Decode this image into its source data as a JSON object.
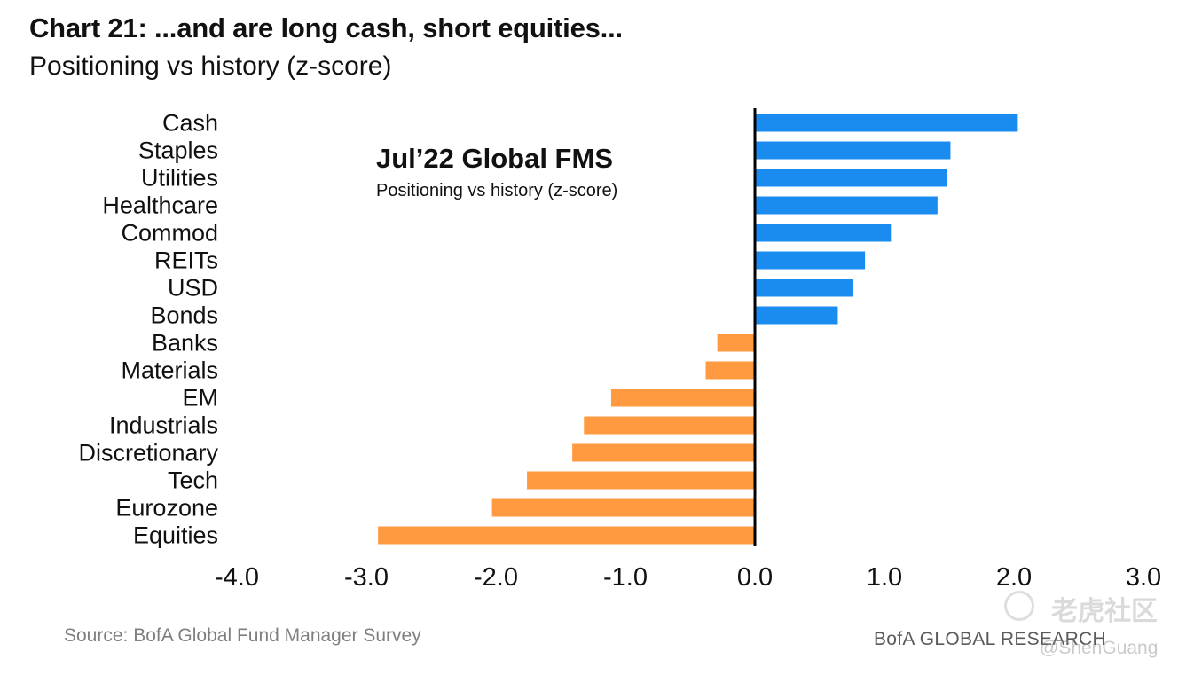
{
  "header": {
    "title": "Chart 21: ...and are long cash, short equities...",
    "subtitle": "Positioning vs history (z-score)"
  },
  "inset": {
    "title": "Jul’22 Global FMS",
    "subtitle": "Positioning vs history (z-score)"
  },
  "footer": {
    "source": "Source: BofA Global Fund Manager Survey",
    "brand": "BofA GLOBAL RESEARCH"
  },
  "watermark": {
    "site": "老虎社区",
    "user": "@ShenGuang"
  },
  "colors": {
    "positive": "#1a8cf0",
    "negative": "#ff9a40",
    "axis": "#000000"
  },
  "chart_data": {
    "type": "bar",
    "orientation": "horizontal",
    "title": "Chart 21: ...and are long cash, short equities...",
    "xlabel": "",
    "ylabel": "",
    "xlim": [
      -4.0,
      3.0
    ],
    "xticks": [
      "-4.0",
      "-3.0",
      "-2.0",
      "-1.0",
      "0.0",
      "1.0",
      "2.0",
      "3.0"
    ],
    "xtick_values": [
      -4,
      -3,
      -2,
      -1,
      0,
      1,
      2,
      3
    ],
    "grid": false,
    "legend": "none",
    "categories": [
      "Cash",
      "Staples",
      "Utilities",
      "Healthcare",
      "Commod",
      "REITs",
      "USD",
      "Bonds",
      "Banks",
      "Materials",
      "EM",
      "Industrials",
      "Discretionary",
      "Tech",
      "Eurozone",
      "Equities"
    ],
    "values": [
      2.03,
      1.51,
      1.48,
      1.41,
      1.05,
      0.85,
      0.76,
      0.64,
      -0.29,
      -0.38,
      -1.11,
      -1.32,
      -1.41,
      -1.76,
      -2.03,
      -2.91
    ]
  }
}
